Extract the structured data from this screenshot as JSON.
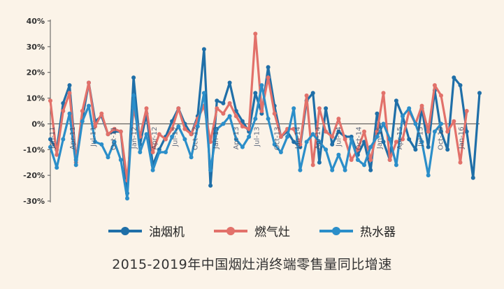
{
  "chart_data": {
    "type": "line",
    "title": "2015-2019年中国烟灶消终端零售量同比增速",
    "xlabel": "",
    "ylabel": "",
    "ylim": [
      -0.3,
      0.4
    ],
    "yticks": [
      "40%",
      "30%",
      "20%",
      "10%",
      "0%",
      "-10%",
      "-20%",
      "-30%"
    ],
    "x_tick_labels": [
      "Jan-11",
      "Apr-11",
      "Jul-11",
      "Oct-11",
      "Jan-12",
      "Apr-12",
      "Jul-12",
      "Oct-12",
      "Jan-13",
      "Apr-13",
      "Jul-13",
      "Oct-13",
      "Jan-14",
      "Apr-14",
      "Jul-14",
      "Oct-14",
      "Jan-15",
      "Apr-15",
      "Jul-15",
      "Oct-15",
      "Jan-16"
    ],
    "grid": false,
    "legend_position": "bottom",
    "series": [
      {
        "name": "油烟机",
        "color": "#1f6fa8",
        "values": [
          -0.06,
          -0.1,
          0.08,
          0.15,
          -0.14,
          0.02,
          0.16,
          0.01,
          0.03,
          -0.04,
          -0.03,
          -0.03,
          -0.27,
          0.18,
          -0.08,
          0.04,
          -0.16,
          -0.1,
          -0.05,
          0.01,
          0.06,
          0.0,
          -0.04,
          0.03,
          0.29,
          -0.24,
          0.09,
          0.08,
          0.16,
          0.05,
          0.01,
          -0.03,
          0.12,
          0.04,
          0.22,
          0.07,
          -0.05,
          -0.03,
          -0.07,
          -0.09,
          0.09,
          0.12,
          -0.15,
          0.06,
          -0.08,
          -0.03,
          -0.05,
          -0.05,
          -0.12,
          -0.07,
          -0.18,
          0.04,
          -0.07,
          -0.14,
          0.09,
          0.03,
          -0.06,
          -0.1,
          0.06,
          -0.09,
          0.13,
          -0.03,
          -0.1,
          0.18,
          0.15,
          -0.03,
          -0.21,
          0.12
        ]
      },
      {
        "name": "燃气灶",
        "color": "#e2716a",
        "values": [
          0.09,
          -0.12,
          0.05,
          0.12,
          -0.15,
          0.05,
          0.16,
          -0.01,
          0.04,
          -0.04,
          -0.02,
          -0.03,
          -0.22,
          0.06,
          -0.05,
          0.06,
          -0.11,
          -0.04,
          -0.06,
          -0.02,
          0.06,
          -0.02,
          -0.04,
          0.02,
          0.07,
          -0.07,
          0.06,
          0.04,
          0.08,
          0.03,
          -0.01,
          -0.02,
          0.35,
          0.05,
          0.18,
          0.04,
          -0.05,
          -0.02,
          -0.02,
          -0.08,
          0.11,
          -0.16,
          0.06,
          -0.03,
          -0.05,
          0.02,
          -0.06,
          -0.14,
          -0.1,
          -0.03,
          -0.14,
          -0.03,
          0.12,
          -0.14,
          -0.07,
          -0.06,
          0.05,
          0.0,
          0.07,
          -0.03,
          0.15,
          0.11,
          -0.03,
          0.01,
          -0.15,
          0.05
        ]
      },
      {
        "name": "热水器",
        "color": "#2b8ec9",
        "values": [
          -0.09,
          -0.17,
          -0.06,
          0.04,
          -0.16,
          0.01,
          0.07,
          -0.07,
          -0.08,
          -0.13,
          -0.07,
          -0.14,
          -0.29,
          0.11,
          -0.11,
          -0.04,
          -0.18,
          -0.11,
          -0.11,
          -0.05,
          -0.01,
          -0.06,
          -0.13,
          -0.01,
          0.12,
          -0.18,
          -0.02,
          0.0,
          0.03,
          -0.06,
          -0.09,
          -0.05,
          0.02,
          0.15,
          0.02,
          -0.08,
          -0.11,
          -0.05,
          0.06,
          -0.18,
          -0.07,
          -0.04,
          -0.07,
          -0.1,
          -0.18,
          -0.12,
          -0.18,
          -0.06,
          -0.14,
          -0.16,
          -0.09,
          -0.05,
          0.0,
          -0.06,
          -0.16,
          0.03,
          0.06,
          0.0,
          -0.07,
          -0.2,
          -0.03,
          0.0
        ]
      }
    ]
  }
}
